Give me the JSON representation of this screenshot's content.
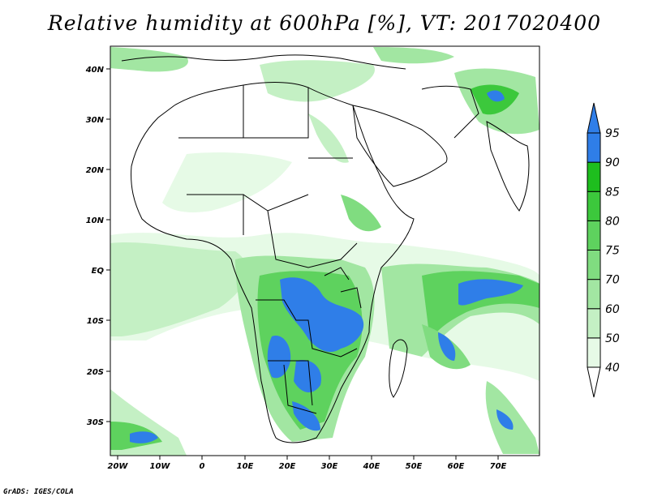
{
  "title": "Relative humidity at 600hPa [%], VT: 2017020400",
  "credit": "GrADS: IGES/COLA",
  "map": {
    "lat_ticks": [
      "40N",
      "30N",
      "20N",
      "10N",
      "EQ",
      "10S",
      "20S",
      "30S"
    ],
    "lon_ticks": [
      "20W",
      "10W",
      "0",
      "10E",
      "20E",
      "30E",
      "40E",
      "50E",
      "60E",
      "70E"
    ]
  },
  "colorbar": {
    "levels": [
      "40",
      "50",
      "60",
      "70",
      "75",
      "80",
      "85",
      "90",
      "95"
    ],
    "colors": [
      "#ffffff",
      "#e6fae6",
      "#c4f0c4",
      "#a2e6a2",
      "#80dc80",
      "#5ed25e",
      "#3cc83c",
      "#1ebe1e",
      "#2f7ee8"
    ],
    "over_color": "#2f7ee8"
  },
  "colors": {
    "coast": "#000000",
    "humid_top": "#2f7ee8"
  }
}
